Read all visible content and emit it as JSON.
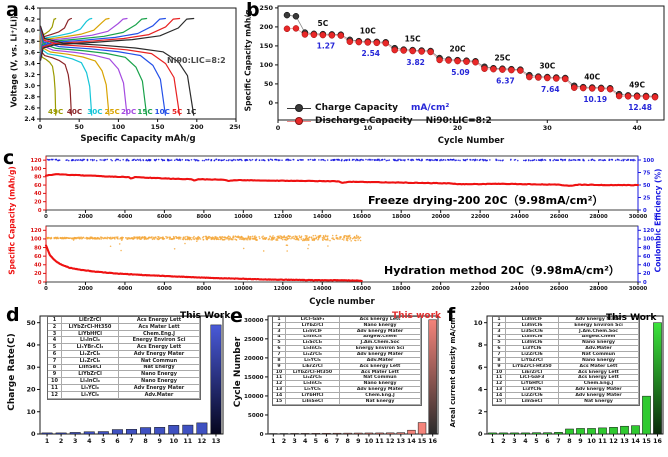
{
  "panel_letters": {
    "a": "a",
    "b": "b",
    "c": "c",
    "d": "d",
    "e": "e",
    "f": "f"
  },
  "chart_data": [
    {
      "id": "a",
      "type": "line",
      "xlabel": "Specific Capacity mAh/g",
      "ylabel": "Voltage (V, vs. Li⁺/Li)",
      "annotation": "Ni90:LIC=8:2",
      "xlim": [
        0,
        250
      ],
      "ylim": [
        2.4,
        4.4
      ],
      "xticks": [
        0,
        50,
        100,
        150,
        200,
        250
      ],
      "yticks": [
        2.4,
        2.6,
        2.8,
        3.0,
        3.2,
        3.4,
        3.6,
        3.8,
        4.0,
        4.2,
        4.4
      ],
      "series": [
        {
          "name": "49C",
          "color": "#9b9b00",
          "capacity": 20,
          "label_x": 20
        },
        {
          "name": "40C",
          "color": "#8b2427",
          "capacity": 40,
          "label_x": 44
        },
        {
          "name": "30C",
          "color": "#16c5d8",
          "capacity": 66,
          "label_x": 70
        },
        {
          "name": "25C",
          "color": "#d9a404",
          "capacity": 88,
          "label_x": 92
        },
        {
          "name": "20C",
          "color": "#a44be0",
          "capacity": 111,
          "label_x": 113
        },
        {
          "name": "15C",
          "color": "#19a24a",
          "capacity": 136,
          "label_x": 134
        },
        {
          "name": "10C",
          "color": "#2450e8",
          "capacity": 160,
          "label_x": 156
        },
        {
          "name": "5C",
          "color": "#e82222",
          "capacity": 178,
          "label_x": 175
        },
        {
          "name": "1C",
          "color": "#2b2b2b",
          "capacity": 196,
          "label_x": 193
        }
      ]
    },
    {
      "id": "b",
      "type": "scatter",
      "xlabel": "Cycle Number",
      "ylabel": "Specific Capacity mAh/g",
      "xlim": [
        0,
        43
      ],
      "ylim": [
        -45,
        255
      ],
      "xticks": [
        0,
        10,
        20,
        30,
        40
      ],
      "yticks": [
        0,
        50,
        100,
        150,
        200,
        250
      ],
      "legend": [
        {
          "label": "Charge Capacity",
          "color": "#3a3a3a"
        },
        {
          "label": "Discharge Capacity",
          "color": "#e82828"
        }
      ],
      "annotations": {
        "current_unit": "mA/cm²",
        "composition": "Ni90:LIC=8:2"
      },
      "unit_color": "#2727d8",
      "groups": [
        {
          "rate": "",
          "current": "",
          "cycles": [
            1,
            2
          ],
          "charge": [
            231,
            228
          ],
          "discharge": [
            195,
            196
          ]
        },
        {
          "rate": "5C",
          "current": "1.27",
          "start": 3,
          "count": 5,
          "cap": 180,
          "capEnd": 177
        },
        {
          "rate": "10C",
          "current": "2.54",
          "start": 8,
          "count": 5,
          "cap": 161,
          "capEnd": 157
        },
        {
          "rate": "15C",
          "current": "3.82",
          "start": 13,
          "count": 5,
          "cap": 139,
          "capEnd": 134
        },
        {
          "rate": "20C",
          "current": "5.09",
          "start": 18,
          "count": 5,
          "cap": 113,
          "capEnd": 107
        },
        {
          "rate": "25C",
          "current": "6.37",
          "start": 23,
          "count": 5,
          "cap": 90,
          "capEnd": 85
        },
        {
          "rate": "30C",
          "current": "7.64",
          "start": 28,
          "count": 5,
          "cap": 68,
          "capEnd": 63
        },
        {
          "rate": "40C",
          "current": "10.19",
          "start": 33,
          "count": 5,
          "cap": 40,
          "capEnd": 36
        },
        {
          "rate": "49C",
          "current": "12.48",
          "start": 38,
          "count": 5,
          "cap": 18,
          "capEnd": 15
        }
      ]
    },
    {
      "id": "c_top",
      "type": "line+scatter",
      "title": "Freeze drying-200 20C（9.98mA/cm²）",
      "ylabel_left": "Specific Capacity (mAh/g)",
      "ylabel_right": "Coulombic Efficiency (%)",
      "xlim": [
        0,
        30000
      ],
      "xticks": [
        0,
        2000,
        4000,
        6000,
        8000,
        10000,
        12000,
        14000,
        16000,
        18000,
        20000,
        22000,
        24000,
        26000,
        28000,
        30000
      ],
      "yticks_left": [
        0,
        20,
        40,
        60,
        80,
        100,
        120
      ],
      "yticks_right": [
        0,
        25,
        50,
        75,
        100
      ],
      "capacity_color": "#ee1111",
      "efficiency_color": "#1a1ae0",
      "efficiency_level": 100,
      "capacity_anchors": [
        [
          0,
          83
        ],
        [
          500,
          86
        ],
        [
          1500,
          84
        ],
        [
          3000,
          81
        ],
        [
          4200,
          79
        ],
        [
          4300,
          76
        ],
        [
          4500,
          79
        ],
        [
          6000,
          76
        ],
        [
          7400,
          74
        ],
        [
          7500,
          71
        ],
        [
          7700,
          74
        ],
        [
          9000,
          73
        ],
        [
          9300,
          70
        ],
        [
          9500,
          72
        ],
        [
          11000,
          71
        ],
        [
          13000,
          70
        ],
        [
          14800,
          69
        ],
        [
          15000,
          66
        ],
        [
          15500,
          68
        ],
        [
          18000,
          66
        ],
        [
          20500,
          64
        ],
        [
          21000,
          62
        ],
        [
          23000,
          63
        ],
        [
          24500,
          62
        ],
        [
          26000,
          61
        ],
        [
          26500,
          58
        ],
        [
          27000,
          61
        ],
        [
          28500,
          60
        ],
        [
          30000,
          60
        ]
      ]
    },
    {
      "id": "c_bottom",
      "type": "line+scatter",
      "title": "Hydration method 20C（9.98mA/cm²）",
      "xlabel": "Cycle number",
      "xlim": [
        0,
        30000
      ],
      "data_end": 16000,
      "xticks": [
        0,
        2000,
        4000,
        6000,
        8000,
        10000,
        12000,
        14000,
        16000,
        18000,
        20000,
        22000,
        24000,
        26000,
        28000,
        30000
      ],
      "yticks_left": [
        0,
        20,
        40,
        60,
        80,
        100,
        120
      ],
      "yticks_right": [
        0,
        20,
        40,
        60,
        80,
        100,
        120
      ],
      "capacity_color": "#ee1111",
      "efficiency_color": "#f5a93e",
      "efficiency_level": 102,
      "capacity_anchors": [
        [
          0,
          85
        ],
        [
          200,
          62
        ],
        [
          500,
          48
        ],
        [
          800,
          40
        ],
        [
          1200,
          33
        ],
        [
          1800,
          28
        ],
        [
          2500,
          24
        ],
        [
          3500,
          20
        ],
        [
          5000,
          16
        ],
        [
          6500,
          13
        ],
        [
          8000,
          10
        ],
        [
          9500,
          8
        ],
        [
          11000,
          6
        ],
        [
          12500,
          5
        ],
        [
          14000,
          4
        ],
        [
          15000,
          4
        ],
        [
          16000,
          3
        ]
      ]
    },
    {
      "id": "d",
      "type": "bar",
      "ylabel": "Charge Rate(C)",
      "annotation": "This Work",
      "annotation_color": "#000000",
      "ylim": [
        0,
        53
      ],
      "yticks": [
        0,
        10,
        20,
        30,
        40,
        50
      ],
      "categories": [
        1,
        2,
        3,
        4,
        5,
        6,
        7,
        8,
        9,
        10,
        11,
        12,
        13
      ],
      "values": [
        0.5,
        0.5,
        0.7,
        1,
        1.1,
        2,
        2.1,
        2.9,
        3,
        3.9,
        4,
        5,
        49
      ],
      "bar_color": "#3f51c1",
      "highlight_index": 12,
      "highlight_top": "#4a5ad8",
      "highlight_bottom": "#06061e",
      "table_rows": [
        [
          "1",
          "LiErZrCl",
          "Acs Energy Lett"
        ],
        [
          "2",
          "LiYbZrCl-Ht350",
          "Acs Mater Lett"
        ],
        [
          "3",
          "LiYbHfCl",
          "Chem.Eng.J"
        ],
        [
          "4",
          "Li₃InCl₆",
          "Energy Environ Sci"
        ],
        [
          "5",
          "Li₃YBr₃Cl₃",
          "Acs Energy Lett"
        ],
        [
          "6",
          "Li₂ZrCl₆",
          "Adv Energy Mater"
        ],
        [
          "7",
          "Li₂ZrCl₆",
          "Nat Commun"
        ],
        [
          "8",
          "LiInSeCl",
          "Nat Energy"
        ],
        [
          "9",
          "LiYbZrCl",
          "Nano Energy"
        ],
        [
          "10",
          "Li₃InCl₆",
          "Nano Energy"
        ],
        [
          "11",
          "Li₃YCl₆",
          "Adv Energy Mater"
        ],
        [
          "12",
          "Li₃YCl₆",
          "Adv.Mater"
        ]
      ]
    },
    {
      "id": "e",
      "type": "bar",
      "ylabel": "Cycle Number",
      "annotation": "This work",
      "annotation_color": "#e03030",
      "ylim": [
        0,
        31000
      ],
      "yticks": [
        0,
        5000,
        10000,
        15000,
        20000,
        25000,
        30000
      ],
      "categories": [
        1,
        2,
        3,
        4,
        5,
        6,
        7,
        8,
        9,
        10,
        11,
        12,
        13,
        14,
        15,
        16
      ],
      "values": [
        120,
        130,
        150,
        160,
        180,
        200,
        210,
        230,
        250,
        270,
        280,
        300,
        350,
        1000,
        3000,
        30000
      ],
      "bar_color": "#f4837a",
      "highlight_index": 15,
      "highlight_top": "#f4837a",
      "highlight_bottom": "#2b2b2b",
      "table_rows": [
        [
          "1",
          "LiCl–GaF₃",
          "Acs Energy Lett"
        ],
        [
          "2",
          "LiYbZrCl",
          "Nano Energy"
        ],
        [
          "3",
          "Li₃InClF",
          "Adv Energy Mater"
        ],
        [
          "4",
          "Li₃InCl₆",
          "Angew.Chem"
        ],
        [
          "5",
          "Li₃ScCl₆",
          "J.Am.Chem.Soc"
        ],
        [
          "6",
          "Li₃InCl₆",
          "Energy Environ Sci"
        ],
        [
          "7",
          "Li₂ZrCl₆",
          "Adv Energy Mater"
        ],
        [
          "8",
          "Li₃YCl₆",
          "Adv.Mater"
        ],
        [
          "9",
          "LiErZrCl",
          "Acs Energy Lett"
        ],
        [
          "10",
          "LiYbZrCl-Ht350",
          "Acs Mater Lett"
        ],
        [
          "11",
          "Li₂ZrCl₆",
          "Nat Commun"
        ],
        [
          "12",
          "Li₃InCl₆",
          "Nano Energy"
        ],
        [
          "13",
          "Li₃YCl₆",
          "Adv Energy Mater"
        ],
        [
          "14",
          "LiYbHfCl",
          "Chem.Eng.J"
        ],
        [
          "15",
          "LiInSeCl",
          "Nat Energy"
        ]
      ]
    },
    {
      "id": "f",
      "type": "bar",
      "ylabel": "Areal current density mA/cm²",
      "annotation": "This Work",
      "annotation_color": "#000000",
      "ylim": [
        0,
        10.6
      ],
      "yticks": [
        0,
        2,
        4,
        6,
        8,
        10
      ],
      "categories": [
        1,
        2,
        3,
        4,
        5,
        6,
        7,
        8,
        9,
        10,
        11,
        12,
        13,
        14,
        15,
        16
      ],
      "values": [
        0.1,
        0.1,
        0.1,
        0.1,
        0.12,
        0.12,
        0.15,
        0.45,
        0.5,
        0.5,
        0.55,
        0.6,
        0.7,
        0.75,
        3.4,
        10
      ],
      "bar_color": "#2fca30",
      "highlight_index": 15,
      "highlight_top": "#3be43b",
      "highlight_bottom": "#0a2a0a",
      "table_rows": [
        [
          "1",
          "Li3InClF",
          "Adv Energy Mater"
        ],
        [
          "2",
          "Li3InCl6",
          "Energy Environ Sci"
        ],
        [
          "3",
          "Li3ScCl6",
          "J.Am.Chem.Soc"
        ],
        [
          "4",
          "Li3InCl6",
          "Angew.Chem"
        ],
        [
          "5",
          "Li3InCl6",
          "Nano Energy"
        ],
        [
          "6",
          "Li3YCl6",
          "Adv.Mater"
        ],
        [
          "7",
          "Li2ZrCl6",
          "Nat Commun"
        ],
        [
          "8",
          "LiYbZrCl",
          "Nano Energy"
        ],
        [
          "9",
          "LiYbZrCl-Ht350",
          "Acs Mater Lett"
        ],
        [
          "10",
          "LiErZrCl",
          "Acs Energy Lett"
        ],
        [
          "11",
          "LiCl-GaF3",
          "Acs Energy Lett"
        ],
        [
          "12",
          "LiYbHfCl",
          "Chem.Eng.J"
        ],
        [
          "13",
          "Li3YCl6",
          "Adv Energy Mater"
        ],
        [
          "14",
          "Li2ZrCl6",
          "Adv Energy Mater"
        ],
        [
          "15",
          "LiInSeCl",
          "Nat Energy"
        ]
      ]
    }
  ]
}
